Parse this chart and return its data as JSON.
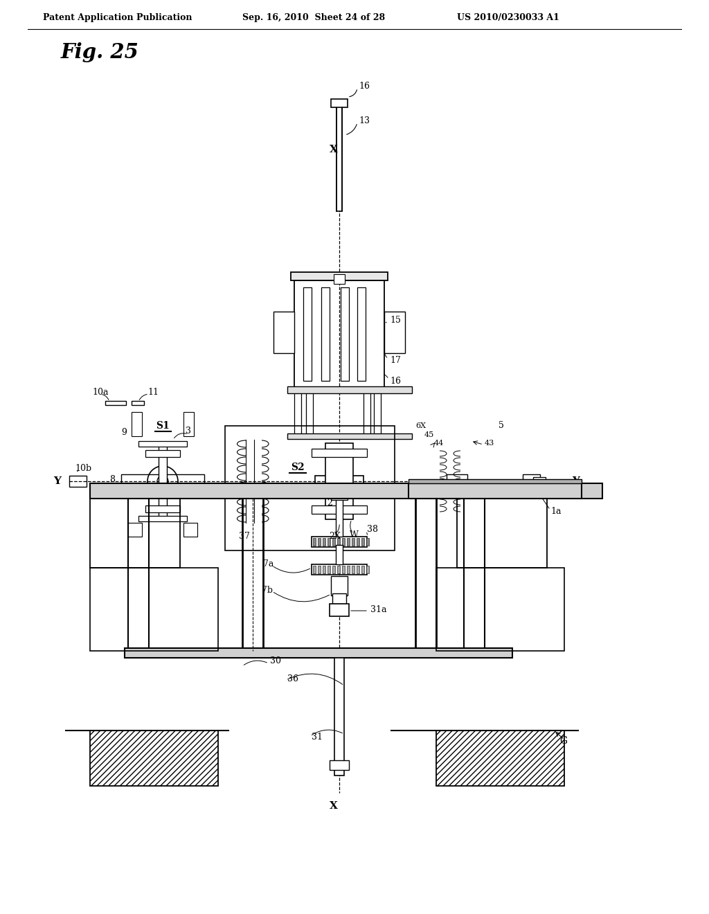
{
  "header_left": "Patent Application Publication",
  "header_mid": "Sep. 16, 2010  Sheet 24 of 28",
  "header_right": "US 2010/0230033 A1",
  "fig_label": "Fig. 25",
  "bg_color": "#ffffff",
  "line_color": "#000000"
}
